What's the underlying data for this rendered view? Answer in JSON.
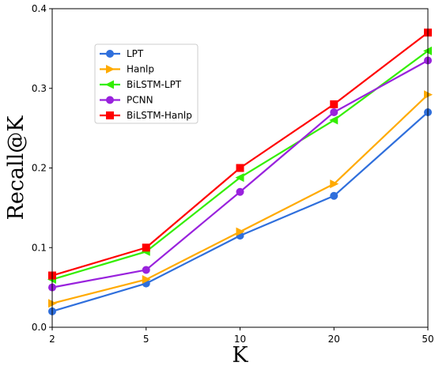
{
  "chart_data": {
    "type": "line",
    "xlabel": "K",
    "ylabel": "Recall@K",
    "x": [
      "2",
      "5",
      "10",
      "20",
      "50"
    ],
    "ylim": [
      0,
      0.4
    ],
    "yticks": [
      "0.0",
      "0.1",
      "0.2",
      "0.3",
      "0.4"
    ],
    "grid": false,
    "legend_position": "upper-left",
    "series": [
      {
        "name": "LPT",
        "color": "#2f6fdc",
        "marker": "circle",
        "values": [
          0.02,
          0.055,
          0.115,
          0.165,
          0.27
        ]
      },
      {
        "name": "Hanlp",
        "color": "#ffaa00",
        "marker": "triangle-right",
        "values": [
          0.03,
          0.06,
          0.12,
          0.18,
          0.292
        ]
      },
      {
        "name": "BiLSTM-LPT",
        "color": "#33ee00",
        "marker": "triangle-left",
        "values": [
          0.06,
          0.095,
          0.188,
          0.26,
          0.347
        ]
      },
      {
        "name": "PCNN",
        "color": "#9922dd",
        "marker": "circle",
        "values": [
          0.05,
          0.072,
          0.17,
          0.27,
          0.335
        ]
      },
      {
        "name": "BiLSTM-Hanlp",
        "color": "#ff0000",
        "marker": "square",
        "values": [
          0.065,
          0.1,
          0.2,
          0.28,
          0.37
        ]
      }
    ]
  }
}
